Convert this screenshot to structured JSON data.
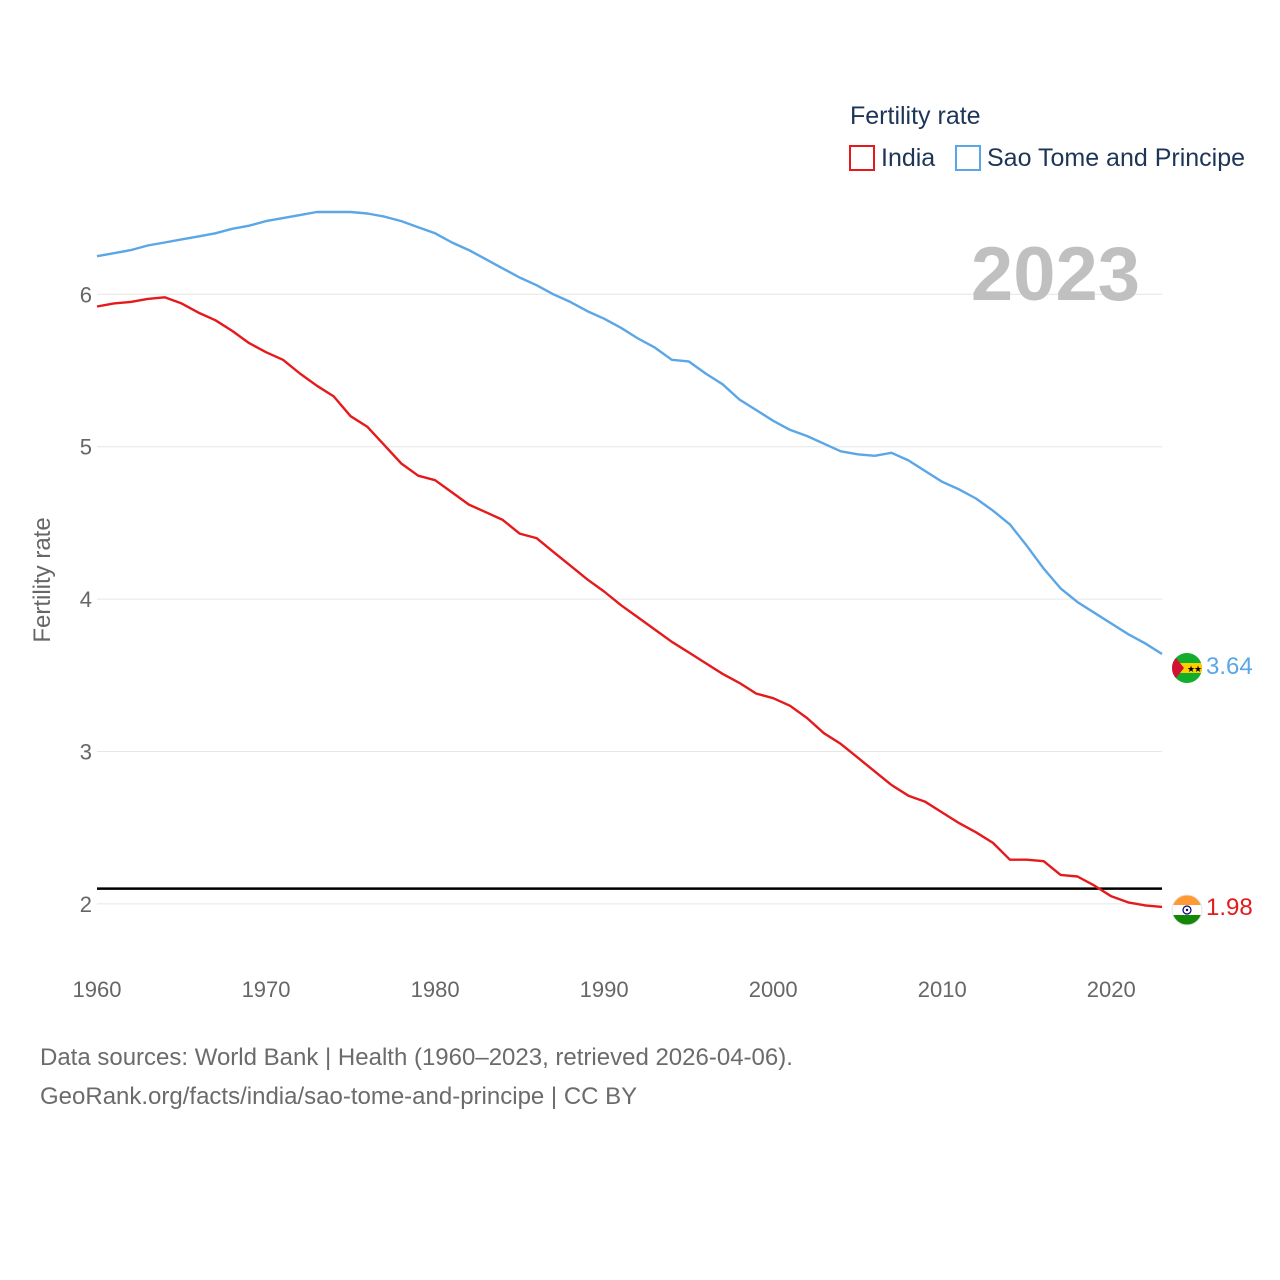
{
  "footer": {
    "line1": "Data sources: World Bank | Health (1960–2023, retrieved 2026-04-06).",
    "line2": "GeoRank.org/facts/india/sao-tome-and-principe | CC BY"
  },
  "chart_data": {
    "type": "line",
    "title": "",
    "year_label": "2023",
    "legend_title": "Fertility rate",
    "ylabel": "Fertility rate",
    "xlabel": "",
    "xlim": [
      1960,
      2023
    ],
    "ylim": [
      1.75,
      6.75
    ],
    "x_ticks": [
      1960,
      1970,
      1980,
      1990,
      2000,
      2010,
      2020
    ],
    "y_ticks": [
      2,
      3,
      4,
      5,
      6
    ],
    "reference_line": 2.1,
    "x": [
      1960,
      1961,
      1962,
      1963,
      1964,
      1965,
      1966,
      1967,
      1968,
      1969,
      1970,
      1971,
      1972,
      1973,
      1974,
      1975,
      1976,
      1977,
      1978,
      1979,
      1980,
      1981,
      1982,
      1983,
      1984,
      1985,
      1986,
      1987,
      1988,
      1989,
      1990,
      1991,
      1992,
      1993,
      1994,
      1995,
      1996,
      1997,
      1998,
      1999,
      2000,
      2001,
      2002,
      2003,
      2004,
      2005,
      2006,
      2007,
      2008,
      2009,
      2010,
      2011,
      2012,
      2013,
      2014,
      2015,
      2016,
      2017,
      2018,
      2019,
      2020,
      2021,
      2022,
      2023
    ],
    "series": [
      {
        "name": "India",
        "color": "#e41a1c",
        "end_label": "1.98",
        "flag": "india-flag-icon",
        "values": [
          5.92,
          5.94,
          5.95,
          5.97,
          5.98,
          5.94,
          5.88,
          5.83,
          5.76,
          5.68,
          5.62,
          5.57,
          5.48,
          5.4,
          5.33,
          5.2,
          5.13,
          5.01,
          4.89,
          4.81,
          4.78,
          4.7,
          4.62,
          4.57,
          4.52,
          4.43,
          4.4,
          4.31,
          4.22,
          4.13,
          4.05,
          3.96,
          3.88,
          3.8,
          3.72,
          3.65,
          3.58,
          3.51,
          3.45,
          3.38,
          3.35,
          3.3,
          3.22,
          3.12,
          3.05,
          2.96,
          2.87,
          2.78,
          2.71,
          2.67,
          2.6,
          2.53,
          2.47,
          2.4,
          2.29,
          2.29,
          2.28,
          2.19,
          2.18,
          2.12,
          2.05,
          2.01,
          1.99,
          1.98
        ]
      },
      {
        "name": "Sao Tome and Principe",
        "color": "#5aa6e6",
        "end_label": "3.64",
        "flag": "sao-tome-flag-icon",
        "values": [
          6.25,
          6.27,
          6.29,
          6.32,
          6.34,
          6.36,
          6.38,
          6.4,
          6.43,
          6.45,
          6.48,
          6.5,
          6.52,
          6.54,
          6.54,
          6.54,
          6.53,
          6.51,
          6.48,
          6.44,
          6.4,
          6.34,
          6.29,
          6.23,
          6.17,
          6.11,
          6.06,
          6.0,
          5.95,
          5.89,
          5.84,
          5.78,
          5.71,
          5.65,
          5.57,
          5.56,
          5.48,
          5.41,
          5.31,
          5.24,
          5.17,
          5.11,
          5.07,
          5.02,
          4.97,
          4.95,
          4.94,
          4.96,
          4.91,
          4.84,
          4.77,
          4.72,
          4.66,
          4.58,
          4.49,
          4.35,
          4.2,
          4.07,
          3.98,
          3.91,
          3.84,
          3.77,
          3.71,
          3.64
        ]
      }
    ]
  }
}
